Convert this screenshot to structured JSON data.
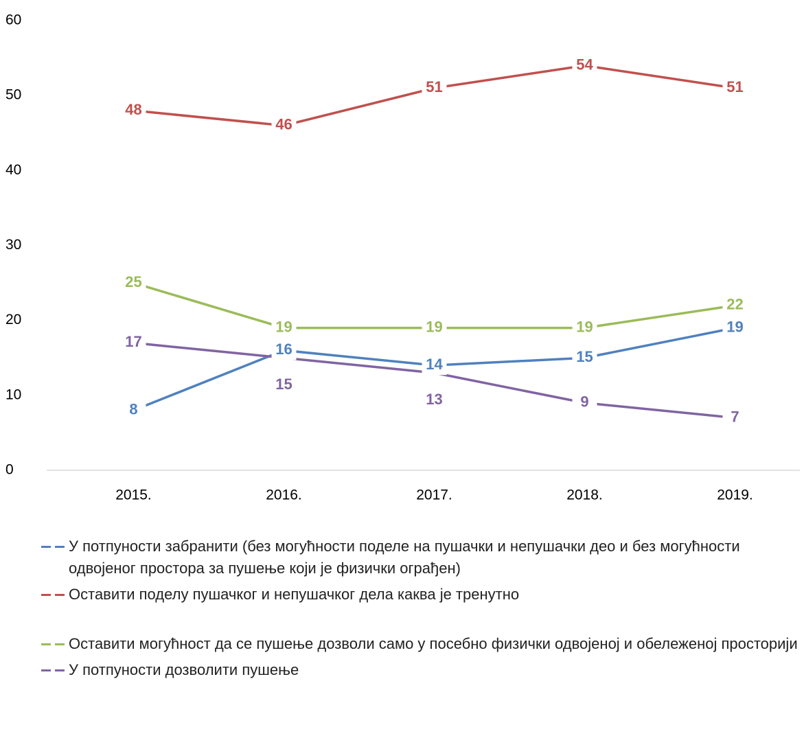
{
  "chart_data": {
    "type": "line",
    "categories": [
      "2015.",
      "2016.",
      "2017.",
      "2018.",
      "2019."
    ],
    "series": [
      {
        "name": "У потпуности забранити (без могућности поделе на пушачки и непушачки део и без могућности  одвојеног простора за пушење који је физички ограђен)",
        "color": "#4f81bd",
        "values": [
          8,
          16,
          14,
          15,
          19
        ]
      },
      {
        "name": "Оставити поделу пушачког и непушачког дела каква је тренутно",
        "color": "#c0504d",
        "values": [
          48,
          46,
          51,
          54,
          51
        ]
      },
      {
        "name": "Оставити могућност да се пушење дозволи само у посебно физички одвојеној и обележеној просторији",
        "color": "#9bbb59",
        "values": [
          25,
          19,
          19,
          19,
          22
        ]
      },
      {
        "name": "У потпуности дозволити пушење",
        "color": "#8064a2",
        "values": [
          17,
          15,
          13,
          9,
          7
        ]
      }
    ],
    "ylim": [
      0,
      60
    ],
    "yticks": [
      0,
      10,
      20,
      30,
      40,
      50,
      60
    ],
    "legend": "bottom"
  }
}
